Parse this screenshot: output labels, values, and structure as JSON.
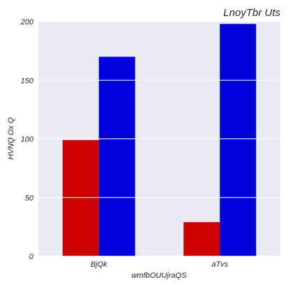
{
  "chart_data": {
    "type": "bar",
    "title": "LnoyTbr  Uts",
    "xlabel": "wmfbOUUjraQS",
    "ylabel": "HVNQ Ox Q",
    "categories": [
      "BjQk",
      "aTvs"
    ],
    "series": [
      {
        "values": [
          99,
          29
        ],
        "color": "#cc0000"
      },
      {
        "values": [
          170,
          198
        ],
        "color": "#0000dd"
      }
    ],
    "ylim": [
      0,
      200
    ],
    "yticks": [
      0,
      50,
      100,
      150,
      200
    ],
    "grid": true,
    "background": "#eaeaf2"
  }
}
